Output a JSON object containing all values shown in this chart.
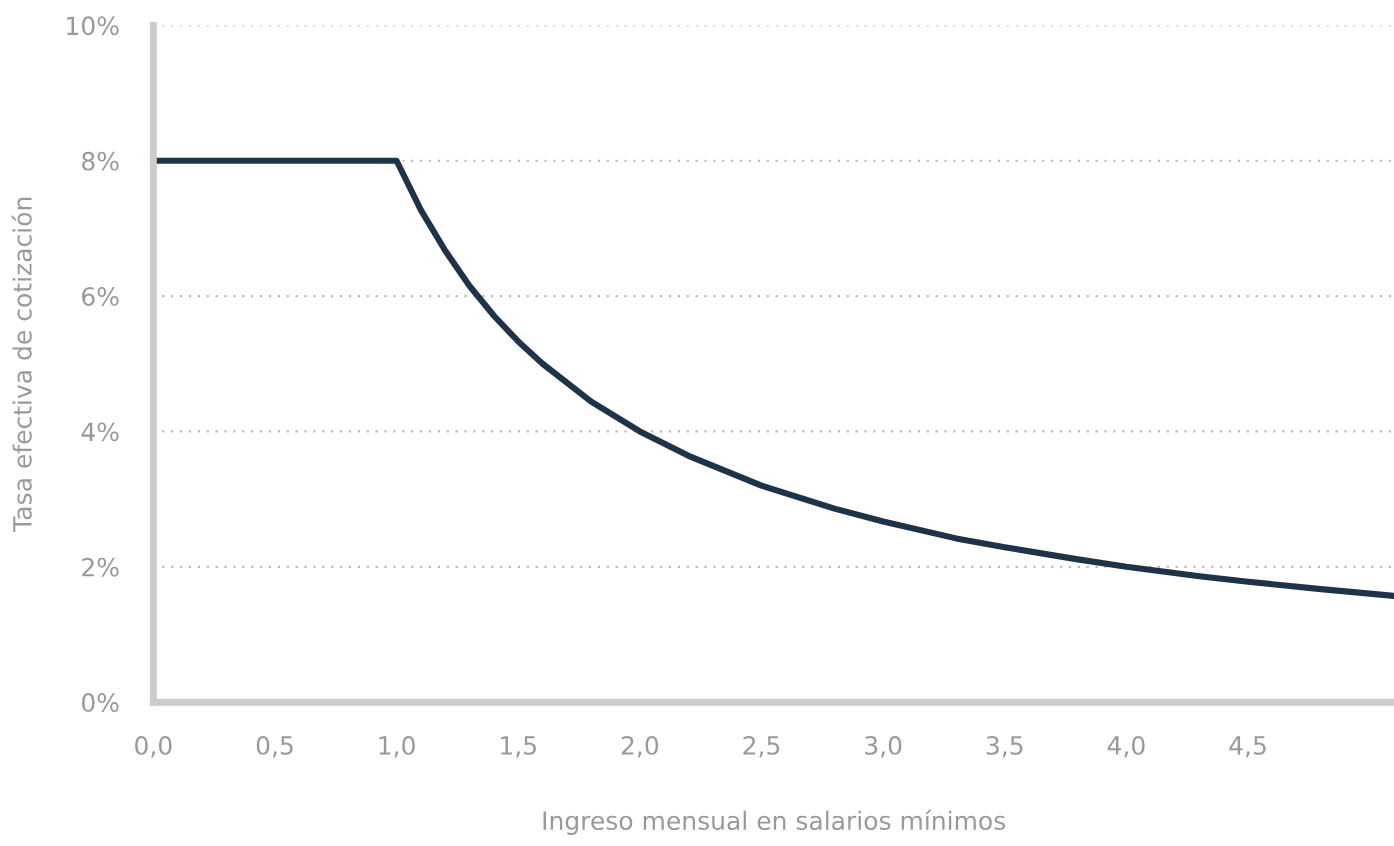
{
  "chart_data": {
    "type": "line",
    "xlabel": "Ingreso mensual en salarios mínimos",
    "ylabel": "Tasa efectiva de cotización",
    "x": [
      0,
      1.0,
      1.1,
      1.2,
      1.3,
      1.4,
      1.5,
      1.6,
      1.8,
      2.0,
      2.2,
      2.5,
      2.8,
      3.0,
      3.3,
      3.5,
      3.8,
      4.0,
      4.3,
      4.5,
      4.8,
      5.1
    ],
    "series": [
      {
        "color": "#1e3348",
        "values": [
          8,
          8,
          7.27,
          6.67,
          6.15,
          5.71,
          5.33,
          5.0,
          4.44,
          4.0,
          3.64,
          3.2,
          2.86,
          2.67,
          2.42,
          2.29,
          2.11,
          2.0,
          1.86,
          1.78,
          1.67,
          1.57
        ]
      }
    ],
    "xlim": [
      0,
      5.1
    ],
    "ylim": [
      0,
      10
    ],
    "xticks": [
      {
        "value": 0,
        "label": "0,0"
      },
      {
        "value": 0.5,
        "label": "0,5"
      },
      {
        "value": 1.0,
        "label": "1,0"
      },
      {
        "value": 1.5,
        "label": "1,5"
      },
      {
        "value": 2.0,
        "label": "2,0"
      },
      {
        "value": 2.5,
        "label": "2,5"
      },
      {
        "value": 3.0,
        "label": "3,0"
      },
      {
        "value": 3.5,
        "label": "3,5"
      },
      {
        "value": 4.0,
        "label": "4,0"
      },
      {
        "value": 4.5,
        "label": "4,5"
      }
    ],
    "yticks": [
      {
        "value": 0,
        "label": "0%"
      },
      {
        "value": 2,
        "label": "2%"
      },
      {
        "value": 4,
        "label": "4%"
      },
      {
        "value": 6,
        "label": "6%"
      },
      {
        "value": 8,
        "label": "8%"
      },
      {
        "value": 10,
        "label": "10%"
      }
    ],
    "grid": "y",
    "line_style": "solid",
    "marker": "none"
  }
}
